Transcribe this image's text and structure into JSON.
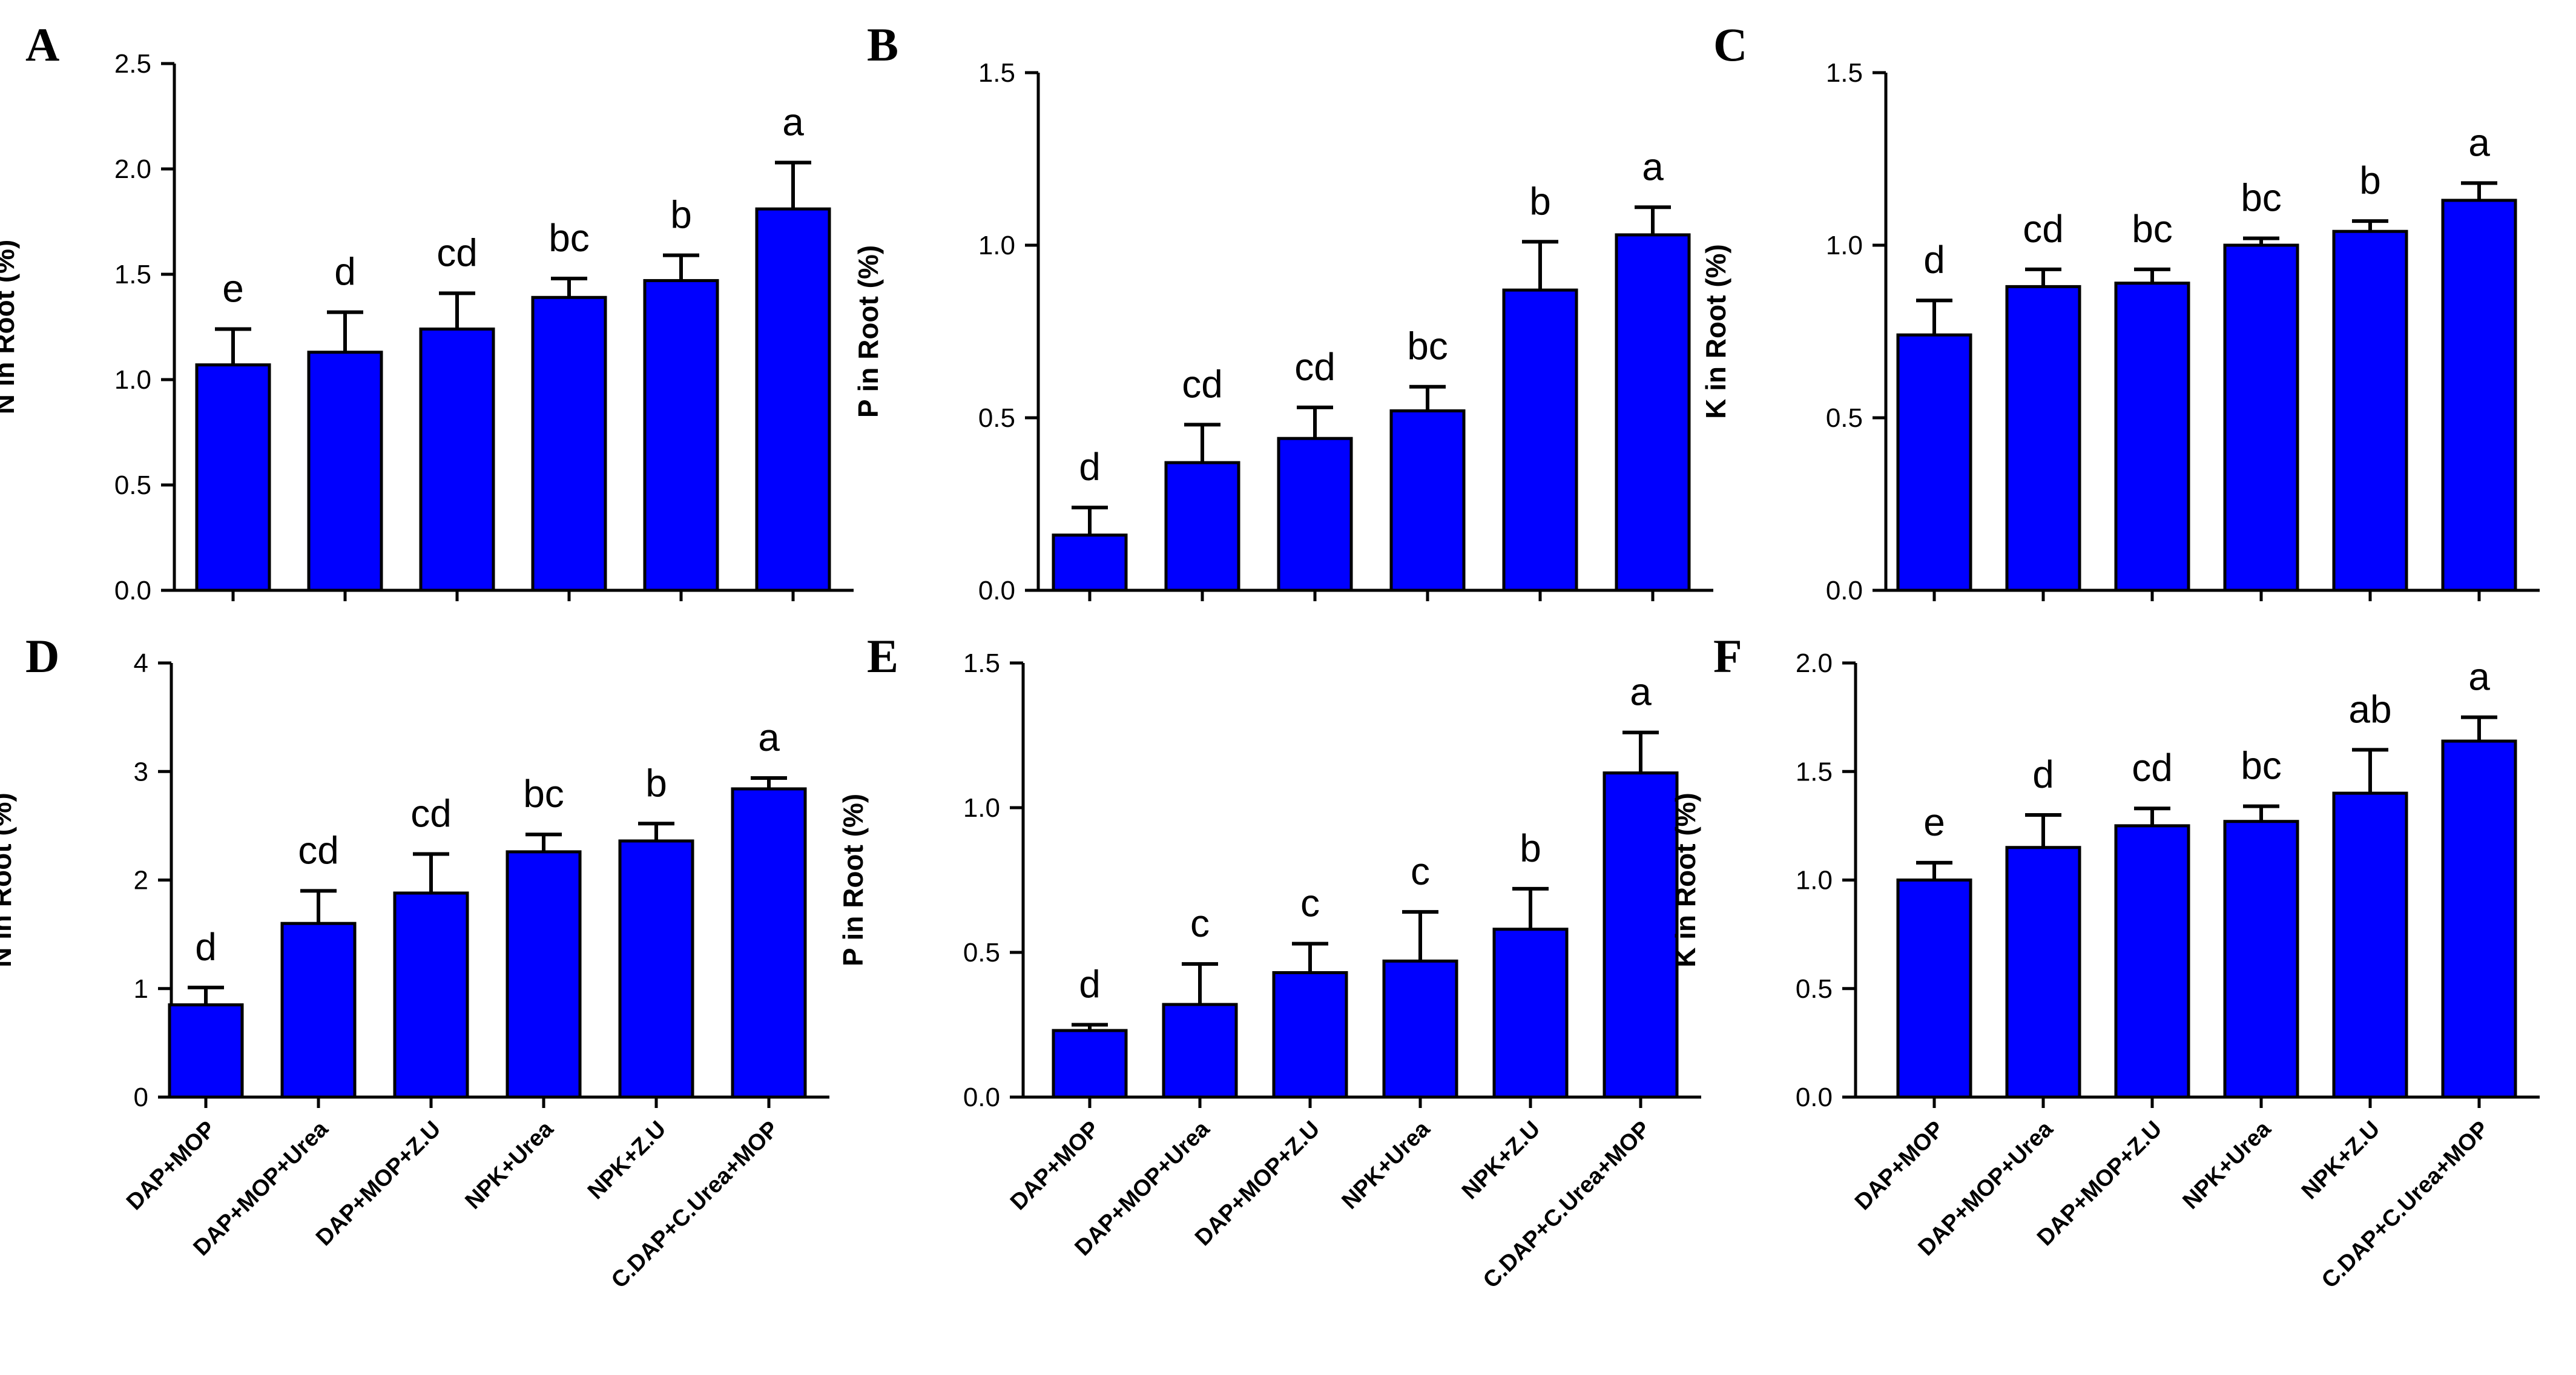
{
  "figure": {
    "bar_color": "#0000ff",
    "outline_color": "#000000"
  },
  "chart_data": [
    {
      "type": "bar",
      "panel": "A",
      "title": "",
      "xlabel": "",
      "ylabel": "N in Root (%)",
      "ylim": [
        0,
        2.5
      ],
      "yticks": [
        "0.0",
        "0.5",
        "1.0",
        "1.5",
        "2.0",
        "2.5"
      ],
      "categories": [
        "DAP+MOP",
        "DAP+MOP+Urea",
        "DAP+MOP+Z.U",
        "NPK+Urea",
        "NPK+Z.U",
        "C.DAP+C.Urea+MOP"
      ],
      "values": [
        1.07,
        1.13,
        1.24,
        1.39,
        1.47,
        1.81
      ],
      "errors": [
        0.17,
        0.19,
        0.17,
        0.09,
        0.12,
        0.22
      ],
      "significance": [
        "e",
        "d",
        "cd",
        "bc",
        "b",
        "a"
      ]
    },
    {
      "type": "bar",
      "panel": "B",
      "title": "",
      "xlabel": "",
      "ylabel": "P in Root (%)",
      "ylim": [
        0,
        1.5
      ],
      "yticks": [
        "0.0",
        "0.5",
        "1.0",
        "1.5"
      ],
      "categories": [
        "DAP+MOP",
        "DAP+MOP+Urea",
        "DAP+MOP+Z.U",
        "NPK+Urea",
        "NPK+Z.U",
        "C.DAP+C.Urea+MOP"
      ],
      "values": [
        0.16,
        0.37,
        0.44,
        0.52,
        0.87,
        1.03
      ],
      "errors": [
        0.08,
        0.11,
        0.09,
        0.07,
        0.14,
        0.08
      ],
      "significance": [
        "d",
        "cd",
        "cd",
        "bc",
        "b",
        "a"
      ]
    },
    {
      "type": "bar",
      "panel": "C",
      "title": "",
      "xlabel": "",
      "ylabel": "K in  Root (%)",
      "ylim": [
        0,
        1.5
      ],
      "yticks": [
        "0.0",
        "0.5",
        "1.0",
        "1.5"
      ],
      "categories": [
        "DAP+MOP",
        "DAP+MOP+Urea",
        "DAP+MOP+Z.U",
        "NPK+Urea",
        "NPK+Z.U",
        "C.DAP+C.Urea+MOP"
      ],
      "values": [
        0.74,
        0.88,
        0.89,
        1.0,
        1.04,
        1.13
      ],
      "errors": [
        0.1,
        0.05,
        0.04,
        0.02,
        0.03,
        0.05
      ],
      "significance": [
        "d",
        "cd",
        "bc",
        "bc",
        "b",
        "a"
      ]
    },
    {
      "type": "bar",
      "panel": "D",
      "title": "",
      "xlabel": "",
      "ylabel": "N in Root (%)",
      "ylim": [
        0,
        4
      ],
      "yticks": [
        "0",
        "1",
        "2",
        "3",
        "4"
      ],
      "categories": [
        "DAP+MOP",
        "DAP+MOP+Urea",
        "DAP+MOP+Z.U",
        "NPK+Urea",
        "NPK+Z.U",
        "C.DAP+C.Urea+MOP"
      ],
      "values": [
        0.85,
        1.6,
        1.88,
        2.26,
        2.36,
        2.84
      ],
      "errors": [
        0.16,
        0.3,
        0.36,
        0.16,
        0.16,
        0.1
      ],
      "significance": [
        "d",
        "cd",
        "cd",
        "bc",
        "b",
        "a"
      ]
    },
    {
      "type": "bar",
      "panel": "E",
      "title": "",
      "xlabel": "",
      "ylabel": "P in Root (%)",
      "ylim": [
        0,
        1.5
      ],
      "yticks": [
        "0.0",
        "0.5",
        "1.0",
        "1.5"
      ],
      "categories": [
        "DAP+MOP",
        "DAP+MOP+Urea",
        "DAP+MOP+Z.U",
        "NPK+Urea",
        "NPK+Z.U",
        "C.DAP+C.Urea+MOP"
      ],
      "values": [
        0.23,
        0.32,
        0.43,
        0.47,
        0.58,
        1.12
      ],
      "errors": [
        0.02,
        0.14,
        0.1,
        0.17,
        0.14,
        0.14
      ],
      "significance": [
        "d",
        "c",
        "c",
        "c",
        "b",
        "a"
      ]
    },
    {
      "type": "bar",
      "panel": "F",
      "title": "",
      "xlabel": "",
      "ylabel": "K in Root (%)",
      "ylim": [
        0,
        2.0
      ],
      "yticks": [
        "0.0",
        "0.5",
        "1.0",
        "1.5",
        "2.0"
      ],
      "categories": [
        "DAP+MOP",
        "DAP+MOP+Urea",
        "DAP+MOP+Z.U",
        "NPK+Urea",
        "NPK+Z.U",
        "C.DAP+C.Urea+MOP"
      ],
      "values": [
        1.0,
        1.15,
        1.25,
        1.27,
        1.4,
        1.64
      ],
      "errors": [
        0.08,
        0.15,
        0.08,
        0.07,
        0.2,
        0.11
      ],
      "significance": [
        "e",
        "d",
        "cd",
        "bc",
        "ab",
        "a"
      ]
    }
  ]
}
